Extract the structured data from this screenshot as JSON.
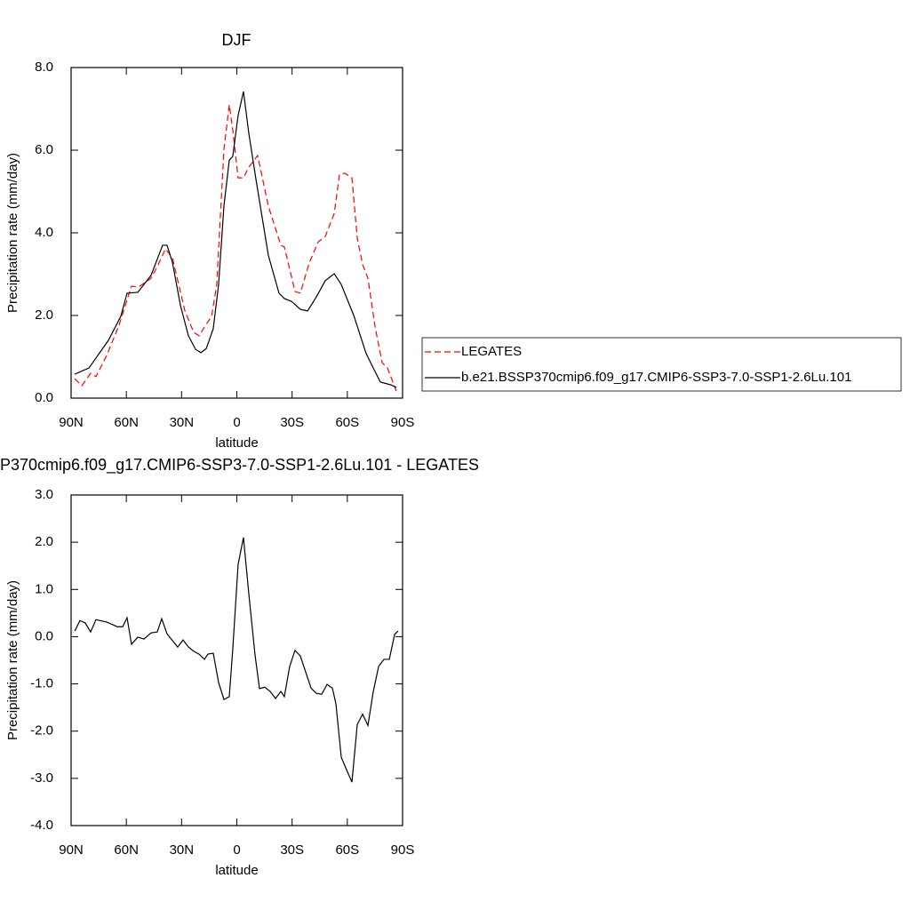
{
  "chart_data": [
    {
      "type": "line",
      "title": "DJF",
      "x_label": "latitude",
      "y_label": "Precipitation rate (mm/day)",
      "xlim": [
        90,
        -90
      ],
      "ylim": [
        0,
        8
      ],
      "xticks": [
        {
          "value": 90,
          "label": "90N"
        },
        {
          "value": 60,
          "label": "60N"
        },
        {
          "value": 30,
          "label": "30N"
        },
        0,
        {
          "value": -30,
          "label": "30S"
        },
        {
          "value": -60,
          "label": "60S"
        },
        {
          "value": -90,
          "label": "90S"
        }
      ],
      "yticks": [
        {
          "value": 0,
          "label": "0.0"
        },
        {
          "value": 2,
          "label": "2.0"
        },
        {
          "value": 4,
          "label": "4.0"
        },
        {
          "value": 6,
          "label": "6.0"
        },
        {
          "value": 8,
          "label": "8.0"
        }
      ],
      "legend": "right",
      "series": [
        {
          "name": "LEGATES",
          "color": "#ff0000",
          "dashed": true,
          "x": [
            88,
            84.2,
            79.4,
            76.5,
            70.7,
            64,
            57.2,
            53.3,
            46.6,
            42.7,
            38.8,
            35,
            28.2,
            23.4,
            20.5,
            17.6,
            13.7,
            10.9,
            7,
            4.1,
            2.2,
            -0.7,
            -3.6,
            -6.5,
            -11.3,
            -17.1,
            -23.9,
            -25.8,
            -31.6,
            -34.5,
            -39.3,
            -44.2,
            -48,
            -52.9,
            -55.8,
            -58.6,
            -62.5,
            -65.4,
            -68.3,
            -71.2,
            -75.1,
            -78.9,
            -81.8,
            -86.6
          ],
          "values": [
            0.47,
            0.3,
            0.6,
            0.52,
            1.03,
            1.76,
            2.71,
            2.69,
            2.9,
            3.23,
            3.61,
            3.4,
            2.11,
            1.59,
            1.51,
            1.72,
            1.98,
            2.75,
            6.02,
            7.1,
            6.49,
            5.33,
            5.33,
            5.59,
            5.87,
            4.65,
            3.7,
            3.66,
            2.58,
            2.54,
            3.27,
            3.78,
            3.91,
            4.47,
            5.42,
            5.44,
            5.33,
            3.87,
            3.23,
            2.9,
            1.72,
            0.86,
            0.73,
            0.17
          ]
        },
        {
          "name": "b.e21.BSSP370cmip6.f09_g17.CMIP6-SSP3-7.0-SSP1-2.6Lu.101",
          "color": "#000000",
          "dashed": false,
          "x": [
            88,
            80.3,
            69.7,
            63,
            59.6,
            53.8,
            46.6,
            40.3,
            37.9,
            35,
            30.6,
            26.3,
            22.4,
            19.5,
            16.6,
            12.8,
            9.9,
            7,
            4.1,
            2.2,
            -0.7,
            -3.6,
            -6.5,
            -10.4,
            -17.1,
            -22.9,
            -25.8,
            -29.7,
            -34.5,
            -38.4,
            -43.2,
            -48,
            -52.9,
            -56.7,
            -63.5,
            -70.2,
            -77.9,
            -83.7,
            -86.6
          ],
          "values": [
            0.58,
            0.73,
            1.4,
            1.98,
            2.54,
            2.56,
            2.97,
            3.7,
            3.7,
            3.29,
            2.24,
            1.51,
            1.18,
            1.1,
            1.2,
            1.68,
            2.75,
            4.65,
            5.76,
            5.85,
            6.84,
            7.42,
            6.41,
            5.29,
            3.46,
            2.54,
            2.41,
            2.34,
            2.15,
            2.11,
            2.45,
            2.84,
            3.01,
            2.75,
            2.0,
            1.08,
            0.39,
            0.32,
            0.26
          ]
        }
      ]
    },
    {
      "type": "line",
      "title": "P370cmip6.f09_g17.CMIP6-SSP3-7.0-SSP1-2.6Lu.101 - LEGATES",
      "x_label": "latitude",
      "y_label": "Precipitation rate (mm/day)",
      "xlim": [
        90,
        -90
      ],
      "ylim": [
        -4,
        3
      ],
      "xticks": [
        {
          "value": 90,
          "label": "90N"
        },
        {
          "value": 60,
          "label": "60N"
        },
        {
          "value": 30,
          "label": "30N"
        },
        0,
        {
          "value": -30,
          "label": "30S"
        },
        {
          "value": -60,
          "label": "60S"
        },
        {
          "value": -90,
          "label": "90S"
        }
      ],
      "yticks": [
        {
          "value": -4,
          "label": "-4.0"
        },
        {
          "value": -3,
          "label": "-3.0"
        },
        {
          "value": -2,
          "label": "-2.0"
        },
        {
          "value": -1,
          "label": "-1.0"
        },
        {
          "value": 0,
          "label": "0.0"
        },
        {
          "value": 1,
          "label": "1.0"
        },
        {
          "value": 2,
          "label": "2.0"
        },
        {
          "value": 3,
          "label": "3.0"
        }
      ],
      "series": [
        {
          "color": "#000000",
          "dashed": false,
          "x": [
            88,
            85.2,
            82.3,
            79.4,
            76.5,
            70.7,
            64.9,
            62,
            59.6,
            57.2,
            53.8,
            50.4,
            46.6,
            43.2,
            40.8,
            37.9,
            32.1,
            29.2,
            26.3,
            23.4,
            20.5,
            17.6,
            15.7,
            12.8,
            9.9,
            7,
            4.1,
            2.2,
            -0.7,
            -3.6,
            -6.5,
            -9.9,
            -12.3,
            -15.2,
            -18.1,
            -21,
            -23.9,
            -25.8,
            -28.7,
            -31.6,
            -34.5,
            -37.4,
            -40.3,
            -43.2,
            -46.1,
            -49,
            -51.9,
            -53.8,
            -56.7,
            -59.6,
            -62.5,
            -65.4,
            -68.3,
            -71.2,
            -74.1,
            -77,
            -79.9,
            -82.8,
            -85.7,
            -87.6
          ],
          "values": [
            0.12,
            0.34,
            0.29,
            0.1,
            0.36,
            0.31,
            0.21,
            0.21,
            0.4,
            -0.16,
            -0.01,
            -0.05,
            0.08,
            0.1,
            0.38,
            0.06,
            -0.22,
            -0.07,
            -0.22,
            -0.31,
            -0.37,
            -0.48,
            -0.37,
            -0.35,
            -0.97,
            -1.33,
            -1.27,
            -0.26,
            1.53,
            2.1,
            0.91,
            -0.39,
            -1.1,
            -1.07,
            -1.16,
            -1.31,
            -1.16,
            -1.27,
            -0.63,
            -0.29,
            -0.41,
            -0.75,
            -1.09,
            -1.2,
            -1.22,
            -1.01,
            -1.09,
            -1.42,
            -2.55,
            -2.82,
            -3.08,
            -1.86,
            -1.64,
            -1.88,
            -1.16,
            -0.63,
            -0.48,
            -0.48,
            0.05,
            0.12
          ]
        }
      ]
    }
  ]
}
